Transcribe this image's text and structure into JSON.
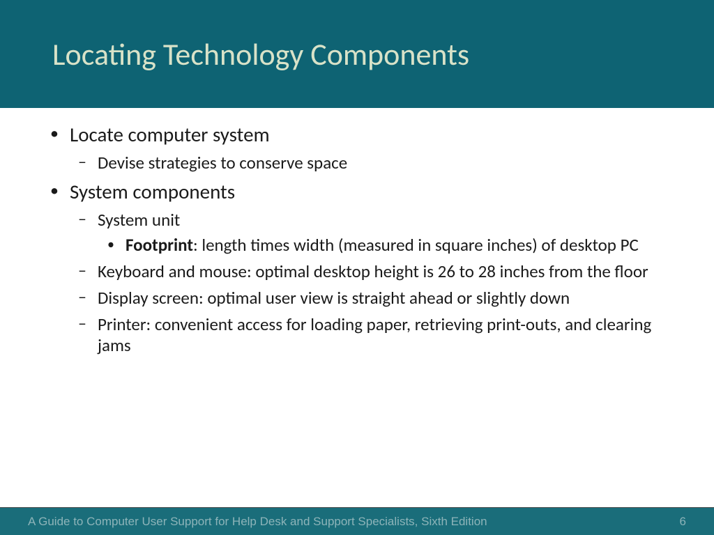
{
  "header": {
    "title": "Locating Technology Components",
    "background_color": "#0e6373",
    "title_color": "#d8e2c8",
    "title_fontsize": 44
  },
  "content": {
    "text_color": "#1a1a1a",
    "background_color": "#ffffff",
    "bullets": [
      {
        "text": "Locate computer system",
        "children": [
          {
            "text": "Devise strategies to conserve space"
          }
        ]
      },
      {
        "text": "System components",
        "children": [
          {
            "text": "System unit",
            "children": [
              {
                "bold": "Footprint",
                "rest": ": length times width (measured in square inches) of desktop PC"
              }
            ]
          },
          {
            "text": "Keyboard and mouse: optimal desktop height is 26 to 28 inches from the floor"
          },
          {
            "text": "Display screen: optimal user view is straight ahead or slightly down"
          },
          {
            "text": "Printer: convenient access for loading paper, retrieving print-outs, and clearing jams"
          }
        ]
      }
    ]
  },
  "footer": {
    "text": "A Guide to Computer User Support for Help Desk and Support Specialists, Sixth Edition",
    "page_number": "6",
    "background_color": "#1a6d7a",
    "text_color": "#8db4b9",
    "fontsize": 17
  }
}
